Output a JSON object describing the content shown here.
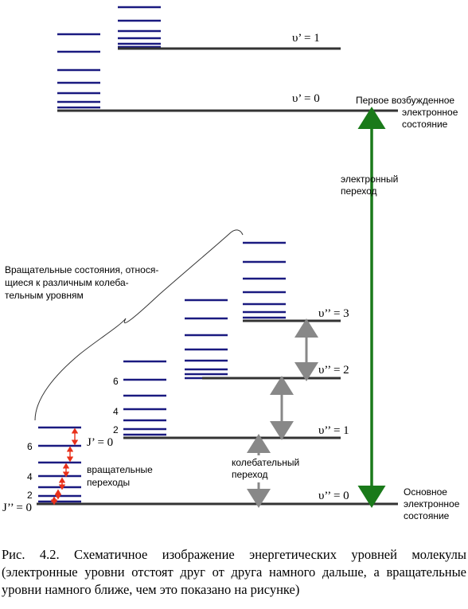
{
  "colors": {
    "level": "#333333",
    "rot": "#1a1a80",
    "electronic_arrow": "#1a7a1a",
    "vib_arrow": "#888888",
    "rot_arrow": "#e8301a"
  },
  "upper": {
    "v0_label": "υ’ = 0",
    "v1_label": "υ’ = 1",
    "state_label": [
      "Первое возбужденное",
      "электронное",
      "состояние"
    ]
  },
  "lower": {
    "v0_label": "υ’’ = 0",
    "v1_label": "υ’’ = 1",
    "v2_label": "υ’’ = 2",
    "v3_label": "υ’’ = 3",
    "state_label": [
      "Основное",
      "электронное",
      "состояние"
    ]
  },
  "electronic_transition": [
    "электронный",
    "переход"
  ],
  "vibrational_transition": [
    "колебательный",
    "переход"
  ],
  "rotational_transitions": [
    "вращательные",
    "переходы"
  ],
  "rot_states_note": [
    "Вращательные состояния, относя-",
    "щиеся к различным колеба-",
    "тельным уровням"
  ],
  "j_labels": {
    "j2_zero": "J’’ = 0",
    "j2_2": "2",
    "j2_4": "4",
    "j2_6": "6",
    "j1_zero": "J’ = 0",
    "j1_2": "2",
    "j1_4": "4",
    "j1_6": "6"
  },
  "caption": "Рис. 4.2. Схематичное изображение энергетических уровней молекулы (электронные уровни отстоят друг от друга намного дальше, а вращательные уровни намного ближе, чем это показано на рисунке)"
}
